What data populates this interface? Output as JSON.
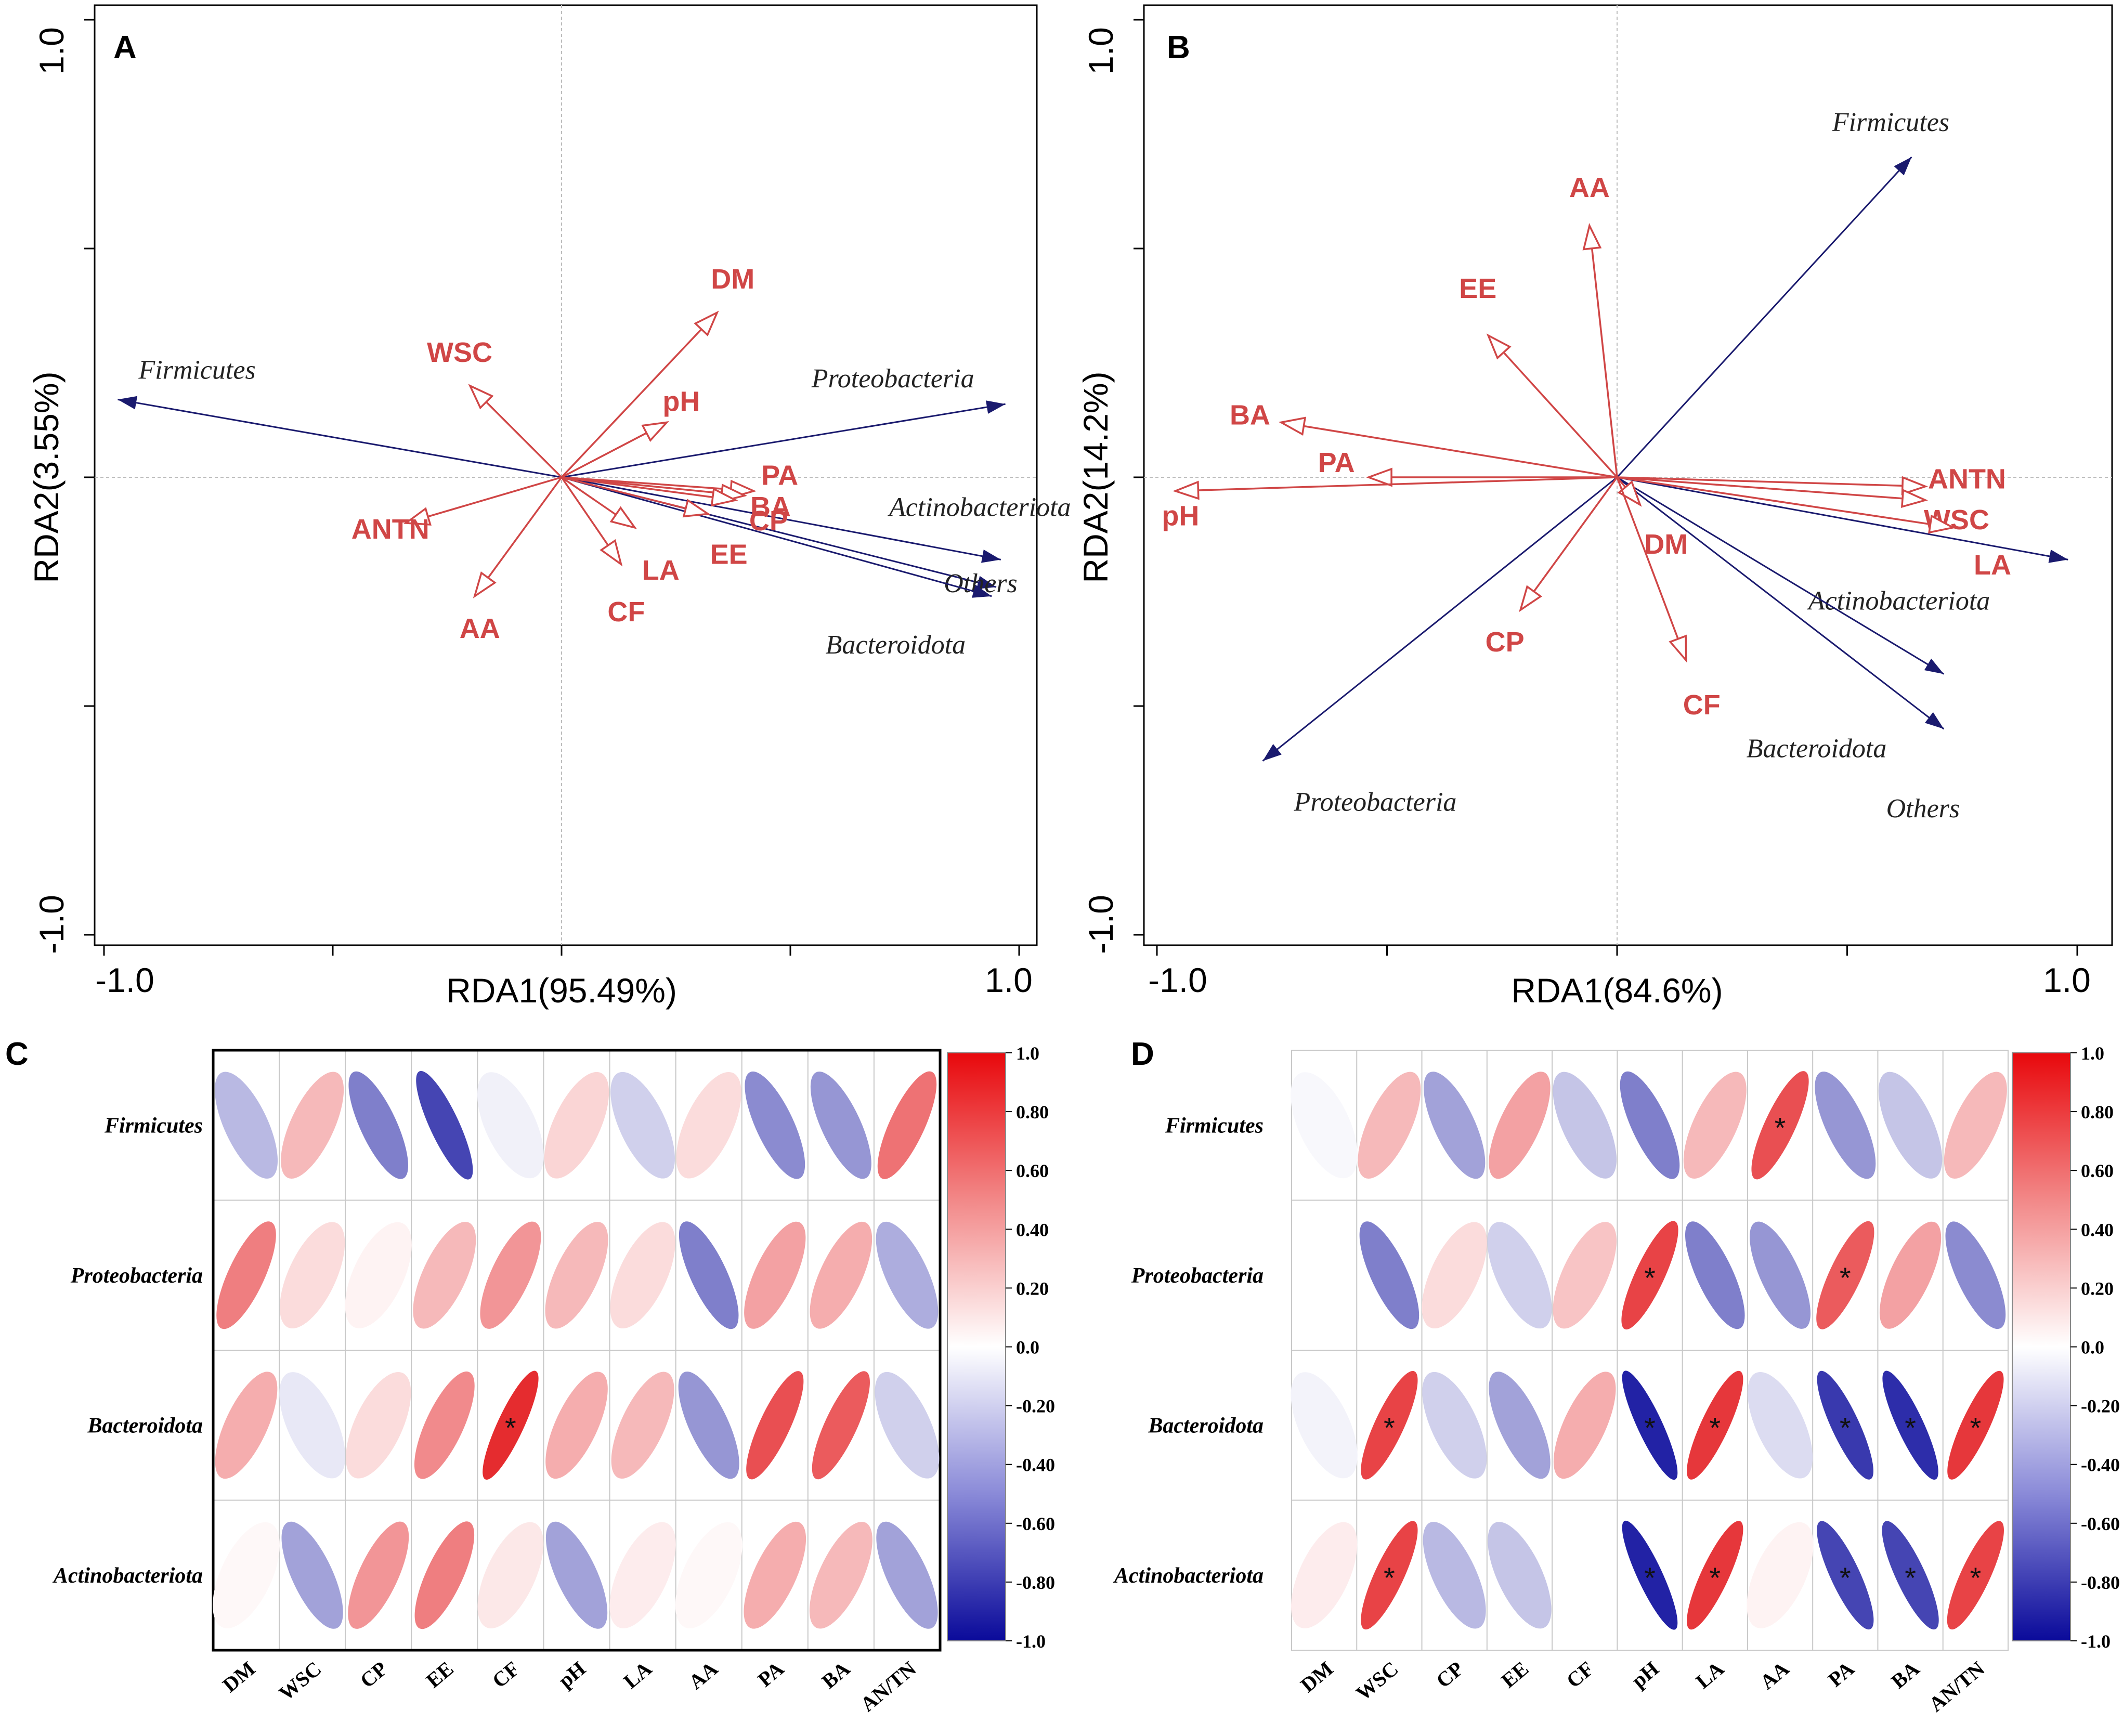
{
  "colors": {
    "env_arrow": "#d04646",
    "species_arrow": "#1a1a6e",
    "positive": "#e21b1b",
    "negative": "#1c1ca8",
    "grid": "#bdbdbd",
    "axis": "#000000"
  },
  "chart_data": [
    {
      "panel": "A",
      "type": "scatter",
      "subtype": "rda-biplot",
      "xlabel": "RDA1(95.49%)",
      "ylabel": "RDA2(3.55%)",
      "xlim": [
        -1.0,
        1.0
      ],
      "ylim": [
        -1.0,
        1.0
      ],
      "x_tick_labels": [
        "-1.0",
        "1.0"
      ],
      "y_tick_labels": [
        "1.0",
        "-1.0"
      ],
      "species_vectors": [
        {
          "name": "Firmicutes",
          "x": -0.97,
          "y": 0.17
        },
        {
          "name": "Proteobacteria",
          "x": 0.97,
          "y": 0.16
        },
        {
          "name": "Actinobacteriota",
          "x": 0.96,
          "y": -0.18
        },
        {
          "name": "Others",
          "x": 0.95,
          "y": -0.24
        },
        {
          "name": "Bacteroidota",
          "x": 0.94,
          "y": -0.26
        }
      ],
      "env_vectors": [
        {
          "name": "DM",
          "x": 0.34,
          "y": 0.36
        },
        {
          "name": "WSC",
          "x": -0.2,
          "y": 0.2
        },
        {
          "name": "pH",
          "x": 0.23,
          "y": 0.12
        },
        {
          "name": "PA",
          "x": 0.42,
          "y": -0.03
        },
        {
          "name": "BA",
          "x": 0.4,
          "y": -0.04
        },
        {
          "name": "CP",
          "x": 0.38,
          "y": -0.05
        },
        {
          "name": "EE",
          "x": 0.32,
          "y": -0.08
        },
        {
          "name": "LA",
          "x": 0.16,
          "y": -0.11
        },
        {
          "name": "CF",
          "x": 0.13,
          "y": -0.19
        },
        {
          "name": "ANTN",
          "x": -0.34,
          "y": -0.1
        },
        {
          "name": "AA",
          "x": -0.19,
          "y": -0.26
        }
      ]
    },
    {
      "panel": "B",
      "type": "scatter",
      "subtype": "rda-biplot",
      "xlabel": "RDA1(84.6%)",
      "ylabel": "RDA2(14.2%)",
      "xlim": [
        -1.0,
        1.0
      ],
      "ylim": [
        -1.0,
        1.0
      ],
      "x_tick_labels": [
        "-1.0",
        "1.0"
      ],
      "y_tick_labels": [
        "1.0",
        "-1.0"
      ],
      "species_vectors": [
        {
          "name": "Firmicutes",
          "x": 0.64,
          "y": 0.7
        },
        {
          "name": "Actinobacteriota",
          "x": 0.98,
          "y": -0.18
        },
        {
          "name": "Bacteroidota",
          "x": 0.71,
          "y": -0.43
        },
        {
          "name": "Others",
          "x": 0.71,
          "y": -0.55
        },
        {
          "name": "Proteobacteria",
          "x": -0.77,
          "y": -0.62
        }
      ],
      "env_vectors": [
        {
          "name": "AA",
          "x": -0.06,
          "y": 0.55
        },
        {
          "name": "EE",
          "x": -0.28,
          "y": 0.31
        },
        {
          "name": "BA",
          "x": -0.73,
          "y": 0.12
        },
        {
          "name": "PA",
          "x": -0.54,
          "y": 0.0
        },
        {
          "name": "pH",
          "x": -0.96,
          "y": -0.03
        },
        {
          "name": "ANTN",
          "x": 0.67,
          "y": -0.02
        },
        {
          "name": "WSC",
          "x": 0.67,
          "y": -0.05
        },
        {
          "name": "LA",
          "x": 0.73,
          "y": -0.11
        },
        {
          "name": "DM",
          "x": 0.05,
          "y": -0.06
        },
        {
          "name": "CP",
          "x": -0.21,
          "y": -0.29
        },
        {
          "name": "CF",
          "x": 0.15,
          "y": -0.4
        }
      ]
    },
    {
      "panel": "C",
      "type": "heatmap",
      "subtype": "correlation-ellipses",
      "rows": [
        "Firmicutes",
        "Proteobacteria",
        "Bacteroidota",
        "Actinobacteriota"
      ],
      "columns": [
        "DM",
        "WSC",
        "CP",
        "EE",
        "CF",
        "pH",
        "LA",
        "AA",
        "PA",
        "BA",
        "AN/TN"
      ],
      "values": [
        [
          -0.3,
          0.3,
          -0.55,
          -0.8,
          -0.06,
          0.18,
          -0.2,
          0.15,
          -0.5,
          -0.45,
          0.6
        ],
        [
          0.55,
          0.15,
          0.05,
          0.3,
          0.45,
          0.3,
          0.15,
          -0.55,
          0.4,
          0.35,
          -0.35
        ],
        [
          0.35,
          -0.1,
          0.15,
          0.5,
          0.9,
          0.35,
          0.3,
          -0.45,
          0.75,
          0.7,
          -0.2
        ],
        [
          0.03,
          -0.4,
          0.45,
          0.55,
          0.1,
          -0.4,
          0.08,
          0.03,
          0.35,
          0.3,
          -0.4
        ]
      ],
      "significant": [
        [
          false,
          false,
          false,
          false,
          false,
          false,
          false,
          false,
          false,
          false,
          false
        ],
        [
          false,
          false,
          false,
          false,
          false,
          false,
          false,
          false,
          false,
          false,
          false
        ],
        [
          false,
          false,
          false,
          false,
          true,
          false,
          false,
          false,
          false,
          false,
          false
        ],
        [
          false,
          false,
          false,
          false,
          false,
          false,
          false,
          false,
          false,
          false,
          false
        ]
      ],
      "star_label": "*",
      "colorbar": {
        "min": -1.0,
        "max": 1.0,
        "tick_labels": [
          "1.0",
          "0.80",
          "0.60",
          "0.40",
          "0.20",
          "0.0",
          "-0.20",
          "-0.40",
          "-0.60",
          "-0.80",
          "-1.0"
        ]
      }
    },
    {
      "panel": "D",
      "type": "heatmap",
      "subtype": "correlation-ellipses",
      "rows": [
        "Firmicutes",
        "Proteobacteria",
        "Bacteroidota",
        "Actinobacteriota"
      ],
      "columns": [
        "DM",
        "WSC",
        "CP",
        "EE",
        "CF",
        "pH",
        "LA",
        "AA",
        "PA",
        "BA",
        "AN/TN"
      ],
      "values": [
        [
          -0.03,
          0.3,
          -0.4,
          0.4,
          -0.25,
          -0.55,
          0.3,
          0.75,
          -0.45,
          -0.25,
          0.3
        ],
        [
          0.0,
          -0.55,
          0.15,
          -0.2,
          0.25,
          0.8,
          -0.55,
          -0.45,
          0.7,
          0.4,
          -0.5
        ],
        [
          -0.05,
          0.8,
          -0.2,
          -0.4,
          0.35,
          -0.95,
          0.85,
          -0.15,
          -0.85,
          -0.9,
          0.85
        ],
        [
          0.08,
          0.8,
          -0.3,
          -0.25,
          0.0,
          -0.95,
          0.85,
          0.05,
          -0.8,
          -0.8,
          0.8
        ]
      ],
      "significant": [
        [
          false,
          false,
          false,
          false,
          false,
          false,
          false,
          true,
          false,
          false,
          false
        ],
        [
          false,
          false,
          false,
          false,
          false,
          true,
          false,
          false,
          true,
          false,
          false
        ],
        [
          false,
          true,
          false,
          false,
          false,
          true,
          true,
          false,
          true,
          true,
          true
        ],
        [
          false,
          true,
          false,
          false,
          false,
          true,
          true,
          false,
          true,
          true,
          true
        ]
      ],
      "star_label": "*",
      "colorbar": {
        "min": -1.0,
        "max": 1.0,
        "tick_labels": [
          "1.0",
          "0.80",
          "0.60",
          "0.40",
          "0.20",
          "0.0",
          "-0.20",
          "-0.40",
          "-0.60",
          "-0.80",
          "-1.0"
        ]
      }
    }
  ]
}
